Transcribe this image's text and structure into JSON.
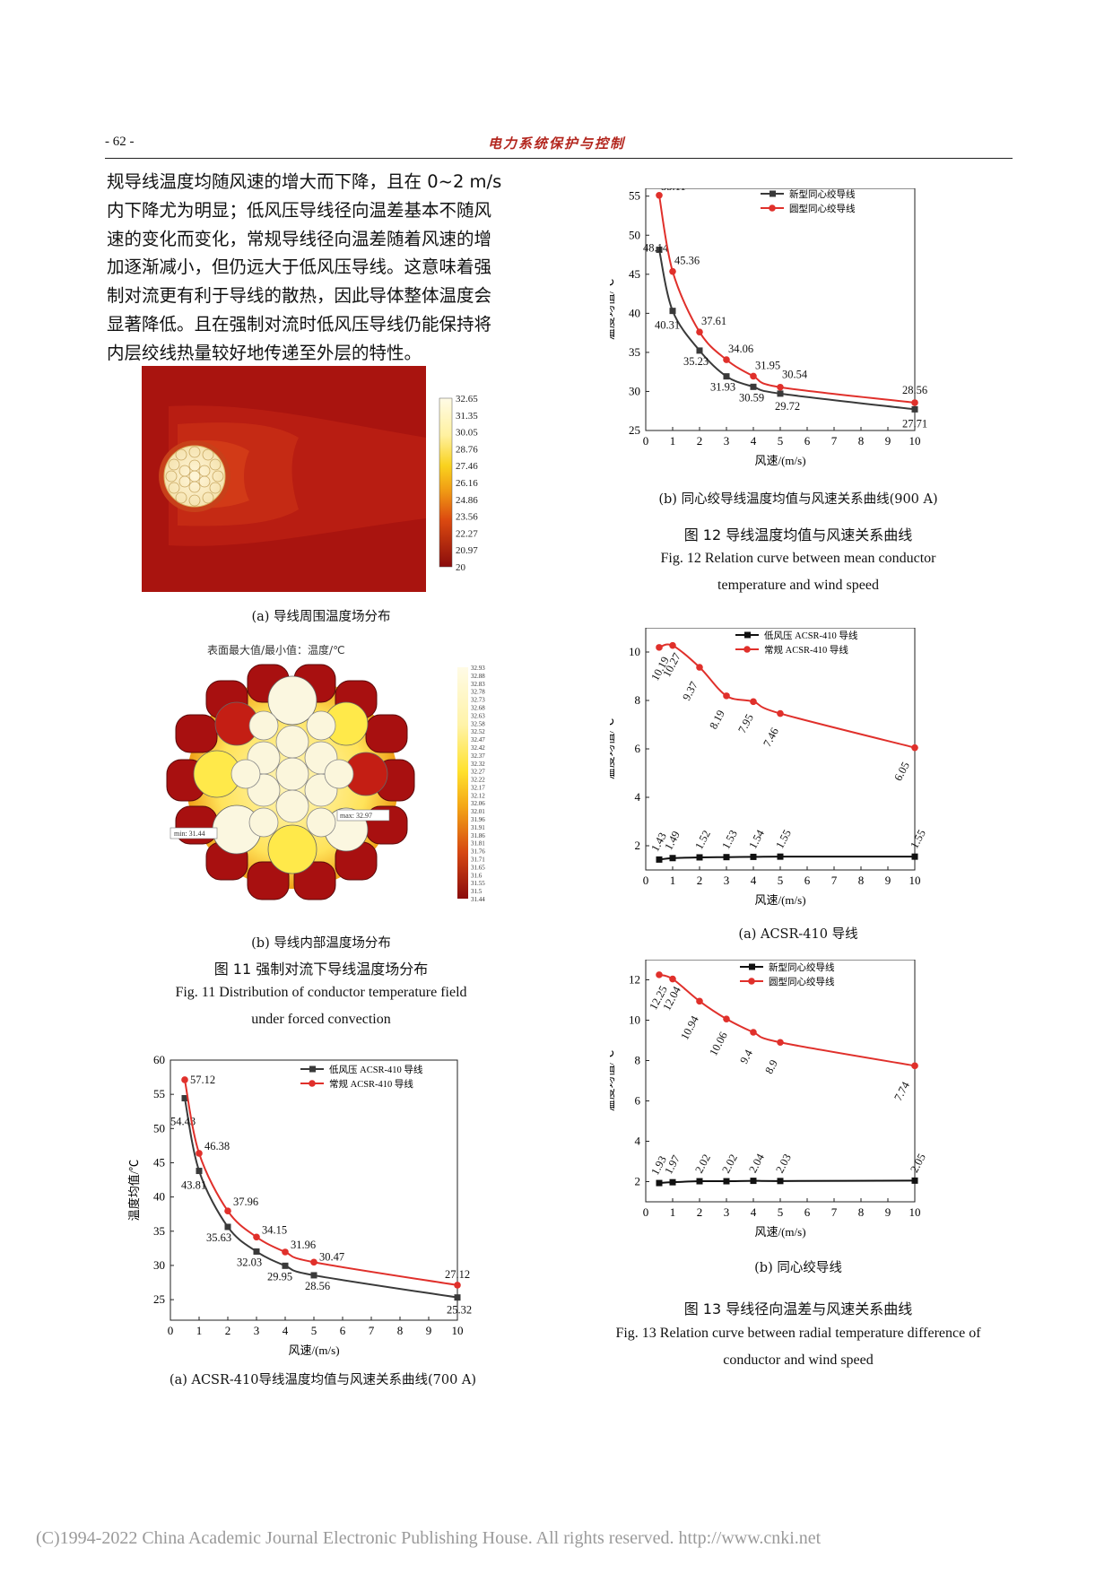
{
  "header": {
    "page_number": "- 62 -",
    "journal": "电力系统保护与控制"
  },
  "body_lines": [
    "规导线温度均随风速的增大而下降，且在  0~2 m/s",
    "内下降尤为明显；低风压导线径向温差基本不随风",
    "速的变化而变化，常规导线径向温差随着风速的增",
    "加逐渐减小，但仍远大于低风压导线。这意味着强",
    "制对流更有利于导线的散热，因此导体整体温度会",
    "显著降低。且在强制对流时低风压导线仍能保持将",
    "内层绞线热量较好地传递至外层的特性。"
  ],
  "fig11": {
    "a_colorbar": [
      "32.65",
      "31.35",
      "30.05",
      "28.76",
      "27.46",
      "26.16",
      "24.86",
      "23.56",
      "22.27",
      "20.97",
      "20"
    ],
    "a_caption": "(a) 导线周围温度场分布",
    "b_title": "表面最大值/最小值：温度/℃",
    "b_colorbar": [
      "32.93",
      "32.88",
      "32.83",
      "32.78",
      "32.73",
      "32.68",
      "32.63",
      "32.58",
      "32.52",
      "32.47",
      "32.42",
      "32.37",
      "32.32",
      "32.27",
      "32.22",
      "32.17",
      "32.12",
      "32.06",
      "32.01",
      "31.96",
      "31.91",
      "31.86",
      "31.81",
      "31.76",
      "31.71",
      "31.65",
      "31.6",
      "31.55",
      "31.5",
      "31.44"
    ],
    "b_min_label": "min: 31.44",
    "b_max_label": "max: 32.97",
    "b_caption": "(b) 导线内部温度场分布",
    "caption_zh": "图 11  强制对流下导线温度场分布",
    "caption_en_1": "Fig. 11 Distribution of conductor temperature field",
    "caption_en_2": "under forced convection"
  },
  "fig12": {
    "caption_zh": "图 12  导线温度均值与风速关系曲线",
    "caption_en_1": "Fig. 12 Relation curve between mean conductor",
    "caption_en_2": "temperature and wind speed"
  },
  "fig13": {
    "caption_zh": "图 13  导线径向温差与风速关系曲线",
    "caption_en_1": "Fig. 13 Relation curve between radial temperature difference of",
    "caption_en_2": "conductor and wind speed"
  },
  "chart_data": [
    {
      "id": "fig12a",
      "type": "line",
      "caption": "(a) ACSR-410导线温度均值与风速关系曲线(700 A)",
      "xlabel": "风速/(m/s)",
      "ylabel": "温度均值/℃",
      "xlim": [
        0,
        10
      ],
      "ylim": [
        22,
        60
      ],
      "xticks": [
        0,
        1,
        2,
        3,
        4,
        5,
        6,
        7,
        8,
        9,
        10
      ],
      "yticks": [
        25,
        30,
        35,
        40,
        45,
        50,
        55,
        60
      ],
      "legend_position": "top-right",
      "x": [
        0.5,
        1,
        2,
        3,
        4,
        5,
        10
      ],
      "series": [
        {
          "name": "低风压 ACSR-410 导线",
          "color": "#3a3a3a",
          "marker": "square",
          "values": [
            54.43,
            43.81,
            35.63,
            32.03,
            29.95,
            28.56,
            25.32
          ],
          "labels": [
            "54.43",
            "43.81",
            "35.63",
            "32.03",
            "29.95",
            "28.56",
            "25.32"
          ]
        },
        {
          "name": "常规 ACSR-410 导线",
          "color": "#e0302b",
          "marker": "circle",
          "values": [
            57.12,
            46.38,
            37.96,
            34.15,
            31.96,
            30.47,
            27.12
          ],
          "labels": [
            "57.12",
            "46.38",
            "37.96",
            "34.15",
            "31.96",
            "30.47",
            "27.12"
          ]
        }
      ]
    },
    {
      "id": "fig12b",
      "type": "line",
      "caption": "(b) 同心绞导线温度均值与风速关系曲线(900 A)",
      "xlabel": "风速/(m/s)",
      "ylabel": "温度均值/℃",
      "xlim": [
        0,
        10
      ],
      "ylim": [
        25,
        56
      ],
      "xticks": [
        0,
        1,
        2,
        3,
        4,
        5,
        6,
        7,
        8,
        9,
        10
      ],
      "yticks": [
        25,
        30,
        35,
        40,
        45,
        50,
        55
      ],
      "legend_position": "top-right",
      "x": [
        0.5,
        1,
        2,
        3,
        4,
        5,
        10
      ],
      "series": [
        {
          "name": "新型同心绞导线",
          "color": "#3a3a3a",
          "marker": "square",
          "values": [
            48.14,
            40.31,
            35.23,
            31.93,
            30.59,
            29.72,
            27.71
          ],
          "labels": [
            "48.14",
            "40.31",
            "35.23",
            "31.93",
            "30.59",
            "29.72",
            "27.71"
          ]
        },
        {
          "name": "圆型同心绞导线",
          "color": "#e0302b",
          "marker": "circle",
          "values": [
            55.11,
            45.36,
            37.61,
            34.06,
            31.95,
            30.54,
            28.56
          ],
          "labels": [
            "55.11",
            "45.36",
            "37.61",
            "34.06",
            "31.95",
            "30.54",
            "28.56"
          ]
        }
      ]
    },
    {
      "id": "fig13a",
      "type": "line",
      "caption": "(a) ACSR-410 导线",
      "xlabel": "风速/(m/s)",
      "ylabel": "温度均值/℃",
      "xlim": [
        0,
        10
      ],
      "ylim": [
        1,
        11
      ],
      "xticks": [
        0,
        1,
        2,
        3,
        4,
        5,
        6,
        7,
        8,
        9,
        10
      ],
      "yticks": [
        2,
        4,
        6,
        8,
        10
      ],
      "legend_position": "top-right",
      "x": [
        0.5,
        1,
        2,
        3,
        4,
        5,
        10
      ],
      "series": [
        {
          "name": "低风压 ACSR-410 导线",
          "color": "#111111",
          "marker": "square",
          "values": [
            1.43,
            1.49,
            1.52,
            1.53,
            1.54,
            1.55,
            1.55
          ],
          "labels": [
            "1.43",
            "1.49",
            "1.52",
            "1.53",
            "1.54",
            "1.55",
            "1.55"
          ]
        },
        {
          "name": "常规 ACSR-410 导线",
          "color": "#e0302b",
          "marker": "circle",
          "values": [
            10.19,
            10.27,
            9.37,
            8.19,
            7.95,
            7.46,
            6.05
          ],
          "labels": [
            "10.19",
            "10.27",
            "9.37",
            "8.19",
            "7.95",
            "7.46",
            "6.05"
          ]
        }
      ]
    },
    {
      "id": "fig13b",
      "type": "line",
      "caption": "(b) 同心绞导线",
      "xlabel": "风速/(m/s)",
      "ylabel": "温度均值/℃",
      "xlim": [
        0,
        10
      ],
      "ylim": [
        1,
        13
      ],
      "xticks": [
        0,
        1,
        2,
        3,
        4,
        5,
        6,
        7,
        8,
        9,
        10
      ],
      "yticks": [
        2,
        4,
        6,
        8,
        10,
        12
      ],
      "legend_position": "top-right",
      "x": [
        0.5,
        1,
        2,
        3,
        4,
        5,
        10
      ],
      "series": [
        {
          "name": "新型同心绞导线",
          "color": "#111111",
          "marker": "square",
          "values": [
            1.93,
            1.97,
            2.02,
            2.02,
            2.04,
            2.03,
            2.05
          ],
          "labels": [
            "1.93",
            "1.97",
            "2.02",
            "2.02",
            "2.04",
            "2.03",
            "2.05"
          ]
        },
        {
          "name": "圆型同心绞导线",
          "color": "#e0302b",
          "marker": "circle",
          "values": [
            12.25,
            12.04,
            10.94,
            10.06,
            9.4,
            8.9,
            7.74
          ],
          "labels": [
            "12.25",
            "12.04",
            "10.94",
            "10.06",
            "9.4",
            "8.9",
            "7.74"
          ]
        }
      ]
    }
  ],
  "footer": "(C)1994-2022 China Academic Journal Electronic Publishing House. All rights reserved.    http://www.cnki.net"
}
